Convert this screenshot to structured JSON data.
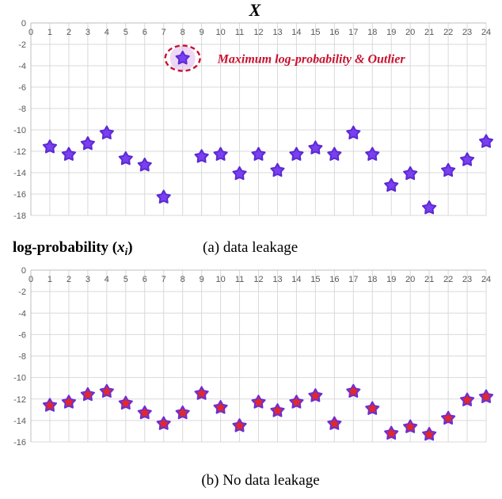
{
  "x_title": "X",
  "y_label_main": "log-probability (",
  "y_label_var": "x",
  "y_label_sub": "i",
  "y_label_close": ")",
  "chart_data": [
    {
      "type": "scatter",
      "caption": "(a) data leakage",
      "x_ticks": [
        "0",
        "1",
        "2",
        "3",
        "4",
        "5",
        "6",
        "7",
        "8",
        "9",
        "10",
        "11",
        "12",
        "13",
        "14",
        "15",
        "16",
        "17",
        "18",
        "19",
        "20",
        "21",
        "22",
        "23",
        "24"
      ],
      "y_ticks": [
        "0",
        "-2",
        "-4",
        "-6",
        "-8",
        "-10",
        "-12",
        "-14",
        "-16",
        "-18"
      ],
      "xlim": [
        0,
        24
      ],
      "ylim": [
        -18,
        0
      ],
      "grid": true,
      "marker": "star",
      "marker_color": "#7a3ff0",
      "marker_edge": "#5b2ad1",
      "x": [
        1,
        2,
        3,
        4,
        5,
        6,
        7,
        8,
        9,
        10,
        11,
        12,
        13,
        14,
        15,
        16,
        17,
        18,
        19,
        20,
        21,
        22,
        23,
        24
      ],
      "y": [
        -11.6,
        -12.3,
        -11.3,
        -10.3,
        -12.7,
        -13.3,
        -16.3,
        -3.3,
        -12.5,
        -12.3,
        -14.1,
        -12.3,
        -13.8,
        -12.3,
        -11.7,
        -12.3,
        -10.3,
        -12.3,
        -15.2,
        -14.1,
        -17.3,
        -13.8,
        -12.8,
        -11.1
      ],
      "annotation": {
        "text": "Maximum log-probability & Outlier",
        "x": 8,
        "y": -3.3,
        "color": "#c8102e"
      }
    },
    {
      "type": "scatter",
      "caption": "(b) No data leakage",
      "x_ticks": [
        "0",
        "1",
        "2",
        "3",
        "4",
        "5",
        "6",
        "7",
        "8",
        "9",
        "10",
        "11",
        "12",
        "13",
        "14",
        "15",
        "16",
        "17",
        "18",
        "19",
        "20",
        "21",
        "22",
        "23",
        "24"
      ],
      "y_ticks": [
        "0",
        "-2",
        "-4",
        "-6",
        "-8",
        "-10",
        "-12",
        "-14",
        "-16"
      ],
      "xlim": [
        0,
        24
      ],
      "ylim": [
        -16,
        0
      ],
      "grid": true,
      "marker": "star",
      "marker_color": "#e0282e",
      "marker_edge": "#6a2fd6",
      "x": [
        1,
        2,
        3,
        4,
        5,
        6,
        7,
        8,
        9,
        10,
        11,
        12,
        13,
        14,
        15,
        16,
        17,
        18,
        19,
        20,
        21,
        22,
        23,
        24
      ],
      "y": [
        -12.6,
        -12.3,
        -11.6,
        -11.3,
        -12.4,
        -13.3,
        -14.3,
        -13.3,
        -11.5,
        -12.8,
        -14.5,
        -12.3,
        -13.1,
        -12.3,
        -11.7,
        -14.3,
        -11.3,
        -12.9,
        -15.2,
        -14.6,
        -15.3,
        -13.8,
        -12.1,
        -11.8
      ]
    }
  ]
}
